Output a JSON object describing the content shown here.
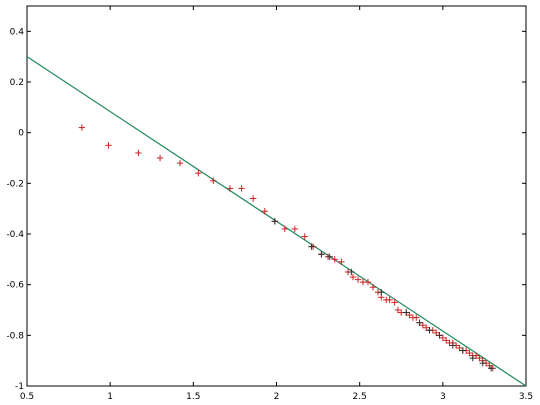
{
  "chart_data": {
    "type": "scatter",
    "xlim": [
      0.5,
      3.5
    ],
    "ylim": [
      -1,
      0.5
    ],
    "x_ticks": [
      0.5,
      1,
      1.5,
      2,
      2.5,
      3,
      3.5
    ],
    "x_tick_labels": [
      "0.5",
      "1",
      "1.5",
      "2",
      "2.5",
      "3",
      "3.5"
    ],
    "y_ticks": [
      -1,
      -0.8,
      -0.6,
      -0.4,
      -0.2,
      0,
      0.2,
      0.4
    ],
    "y_tick_labels": [
      "-1",
      "-0.8",
      "-0.6",
      "-0.4",
      "-0.2",
      "0",
      "0.2",
      "0.4"
    ],
    "grid": false,
    "legend": "none",
    "series": [
      {
        "kind": "scatter",
        "marker": "plus",
        "color": "#cc2222",
        "x": [
          0.83,
          0.99,
          1.17,
          1.3,
          1.42,
          1.53,
          1.62,
          1.72,
          1.79,
          1.86,
          1.93,
          1.99,
          2.05,
          2.11,
          2.17,
          2.22,
          2.27,
          2.31,
          2.35,
          2.39,
          2.43,
          2.46,
          2.49,
          2.52,
          2.55,
          2.58,
          2.61,
          2.63,
          2.66,
          2.68,
          2.71,
          2.73,
          2.75,
          2.78,
          2.8,
          2.82,
          2.84,
          2.86,
          2.88,
          2.9,
          2.92,
          2.94,
          2.96,
          2.98,
          3.0,
          3.02,
          3.04,
          3.06,
          3.08,
          3.1,
          3.12,
          3.14,
          3.16,
          3.18,
          3.2,
          3.22,
          3.24,
          3.26,
          3.28,
          3.3
        ],
        "y": [
          0.02,
          -0.05,
          -0.08,
          -0.1,
          -0.12,
          -0.16,
          -0.19,
          -0.22,
          -0.22,
          -0.26,
          -0.31,
          -0.35,
          -0.38,
          -0.38,
          -0.41,
          -0.45,
          -0.48,
          -0.49,
          -0.5,
          -0.51,
          -0.55,
          -0.57,
          -0.58,
          -0.59,
          -0.59,
          -0.61,
          -0.63,
          -0.65,
          -0.66,
          -0.66,
          -0.67,
          -0.7,
          -0.71,
          -0.71,
          -0.72,
          -0.73,
          -0.73,
          -0.75,
          -0.76,
          -0.77,
          -0.78,
          -0.78,
          -0.79,
          -0.8,
          -0.81,
          -0.82,
          -0.83,
          -0.83,
          -0.84,
          -0.85,
          -0.86,
          -0.86,
          -0.87,
          -0.88,
          -0.88,
          -0.89,
          -0.9,
          -0.91,
          -0.92,
          -0.93
        ]
      },
      {
        "kind": "scatter",
        "marker": "plus",
        "color": "#333333",
        "x": [
          1.99,
          2.21,
          2.27,
          2.32,
          2.45,
          2.63,
          2.78,
          2.86,
          2.92,
          2.98,
          3.06,
          3.12,
          3.18,
          3.24,
          3.29
        ],
        "y": [
          -0.35,
          -0.45,
          -0.48,
          -0.49,
          -0.55,
          -0.63,
          -0.71,
          -0.75,
          -0.78,
          -0.8,
          -0.84,
          -0.86,
          -0.89,
          -0.91,
          -0.93
        ]
      },
      {
        "kind": "line",
        "color": "#1f8a5a",
        "x": [
          0.5,
          3.5
        ],
        "y": [
          0.3,
          -1.0
        ]
      }
    ]
  }
}
